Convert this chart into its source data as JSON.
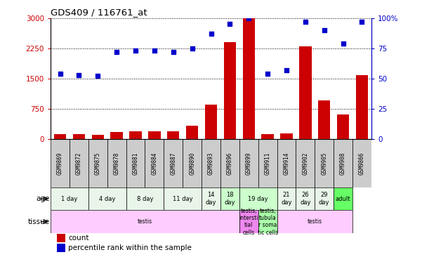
{
  "title": "GDS409 / 116761_at",
  "samples": [
    "GSM9869",
    "GSM9872",
    "GSM9875",
    "GSM9878",
    "GSM9881",
    "GSM9884",
    "GSM9887",
    "GSM9890",
    "GSM9893",
    "GSM9896",
    "GSM9899",
    "GSM9911",
    "GSM9914",
    "GSM9902",
    "GSM9905",
    "GSM9908",
    "GSM9866"
  ],
  "counts": [
    120,
    115,
    110,
    175,
    195,
    190,
    195,
    330,
    850,
    2400,
    3000,
    115,
    145,
    2300,
    950,
    600,
    1580
  ],
  "percentiles": [
    54,
    53,
    52,
    72,
    73,
    73,
    72,
    75,
    87,
    95,
    100,
    54,
    57,
    97,
    90,
    79,
    97
  ],
  "bar_color": "#cc0000",
  "dot_color": "#0000cc",
  "ylim_left": [
    0,
    3000
  ],
  "ylim_right": [
    0,
    100
  ],
  "yticks_left": [
    0,
    750,
    1500,
    2250,
    3000
  ],
  "yticks_right": [
    0,
    25,
    50,
    75,
    100
  ],
  "ytick_labels_right": [
    "0",
    "25",
    "50",
    "75",
    "100%"
  ],
  "age_groups": [
    {
      "label": "1 day",
      "start": 0,
      "end": 2,
      "color": "#e8f5e8"
    },
    {
      "label": "4 day",
      "start": 2,
      "end": 4,
      "color": "#e8f5e8"
    },
    {
      "label": "8 day",
      "start": 4,
      "end": 6,
      "color": "#e8f5e8"
    },
    {
      "label": "11 day",
      "start": 6,
      "end": 8,
      "color": "#e8f5e8"
    },
    {
      "label": "14\nday",
      "start": 8,
      "end": 9,
      "color": "#e8f5e8"
    },
    {
      "label": "18\nday",
      "start": 9,
      "end": 10,
      "color": "#ccffcc"
    },
    {
      "label": "19 day",
      "start": 10,
      "end": 12,
      "color": "#ccffcc"
    },
    {
      "label": "21\nday",
      "start": 12,
      "end": 13,
      "color": "#e8f5e8"
    },
    {
      "label": "26\nday",
      "start": 13,
      "end": 14,
      "color": "#e8f5e8"
    },
    {
      "label": "29\nday",
      "start": 14,
      "end": 15,
      "color": "#e8f5e8"
    },
    {
      "label": "adult",
      "start": 15,
      "end": 16,
      "color": "#66ff66"
    }
  ],
  "tissue_groups": [
    {
      "label": "testis",
      "start": 0,
      "end": 10,
      "color": "#ffccff"
    },
    {
      "label": "testis,\nintersti\ntial\ncells",
      "start": 10,
      "end": 11,
      "color": "#ee88ee"
    },
    {
      "label": "testis,\ntubula\nr soma\ntic cells",
      "start": 11,
      "end": 12,
      "color": "#aaffaa"
    },
    {
      "label": "testis",
      "start": 12,
      "end": 16,
      "color": "#ffccff"
    }
  ],
  "bg_color": "#ffffff",
  "sample_box_color": "#cccccc"
}
